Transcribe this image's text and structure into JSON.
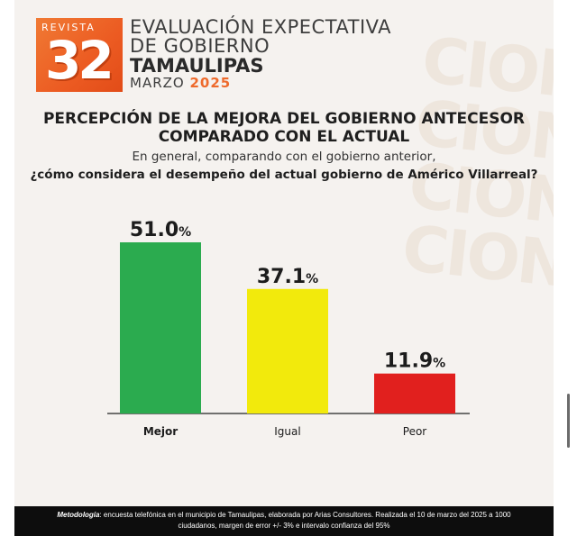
{
  "header": {
    "logo_top": "REVISTA",
    "logo_number": "32",
    "title_line1": "EVALUACIÓN EXPECTATIVA",
    "title_line2": "DE GOBIERNO",
    "title_line3": "TAMAULIPAS",
    "month": "MARZO",
    "year": "2025"
  },
  "watermark": [
    "CION",
    "CION",
    "CION",
    "CION"
  ],
  "main_title": "PERCEPCIÓN DE LA MEJORA DEL GOBIERNO ANTECESOR COMPARADO CON EL ACTUAL",
  "subtitle_line1": "En general, comparando con el gobierno anterior,",
  "subtitle_line2": "¿cómo considera el desempeño del actual gobierno de Américo Villarreal?",
  "chart_data": {
    "type": "bar",
    "categories": [
      "Mejor",
      "Igual",
      "Peor"
    ],
    "values": [
      51.0,
      37.1,
      11.9
    ],
    "value_labels": [
      "51.0",
      "37.1",
      "11.9"
    ],
    "unit": "%",
    "colors": [
      "#2bab4f",
      "#f2ea0c",
      "#e1201e"
    ],
    "ylim": [
      0,
      51
    ],
    "grid": false,
    "legend": "none"
  },
  "footer": {
    "method_label": "Metodología",
    "method_text": ": encuesta telefónica en el municipio de Tamaulipas, elaborada por Arias Consultores. Realizada el 10 de marzo del 2025 a 1000 ciudadanos, margen de error +/- 3% e intervalo confianza del 95%"
  }
}
